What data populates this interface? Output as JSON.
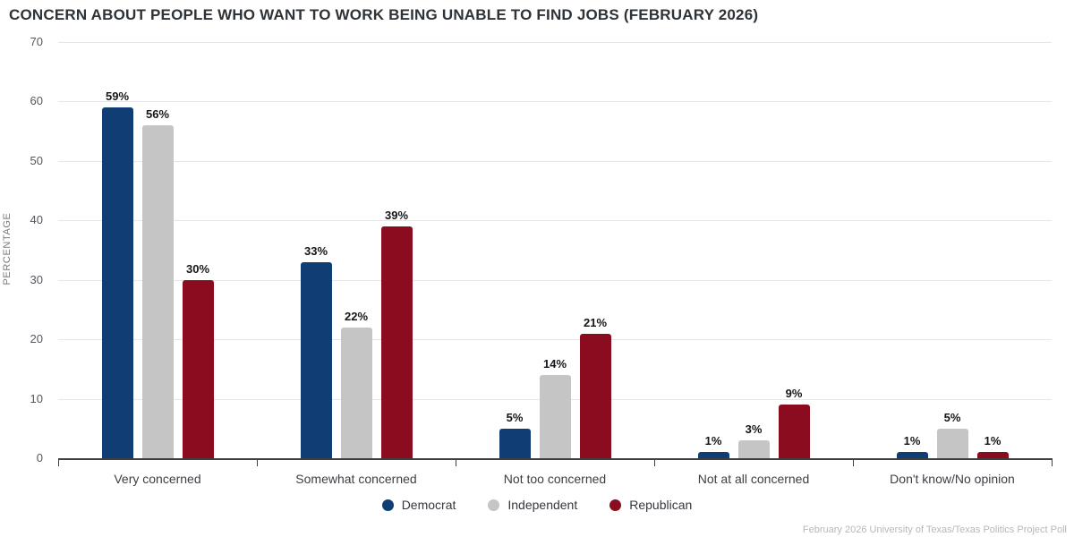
{
  "title": "CONCERN ABOUT PEOPLE WHO WANT TO WORK BEING UNABLE TO FIND JOBS (FEBRUARY 2026)",
  "footer": "February 2026 University of Texas/Texas Politics Project Poll",
  "chart_data": {
    "type": "bar",
    "title": "CONCERN ABOUT PEOPLE WHO WANT TO WORK BEING UNABLE TO FIND JOBS (FEBRUARY 2026)",
    "xlabel": "",
    "ylabel": "PERCENTAGE",
    "ylim": [
      0,
      70
    ],
    "yticks": [
      0,
      10,
      20,
      30,
      40,
      50,
      60,
      70
    ],
    "grid": true,
    "legend_position": "bottom",
    "unit": "%",
    "categories": [
      "Very concerned",
      "Somewhat concerned",
      "Not too concerned",
      "Not at all concerned",
      "Don't know/No opinion"
    ],
    "series": [
      {
        "name": "Democrat",
        "color": "#103d73",
        "values": [
          59,
          33,
          5,
          1,
          1
        ]
      },
      {
        "name": "Independent",
        "color": "#c5c5c5",
        "values": [
          56,
          22,
          14,
          3,
          5
        ]
      },
      {
        "name": "Republican",
        "color": "#8b0c1e",
        "values": [
          30,
          39,
          21,
          9,
          1
        ]
      }
    ],
    "colors": {
      "gridline": "#e6e6e6",
      "axis": "#3b3f44",
      "value_label": "#14171a"
    }
  }
}
